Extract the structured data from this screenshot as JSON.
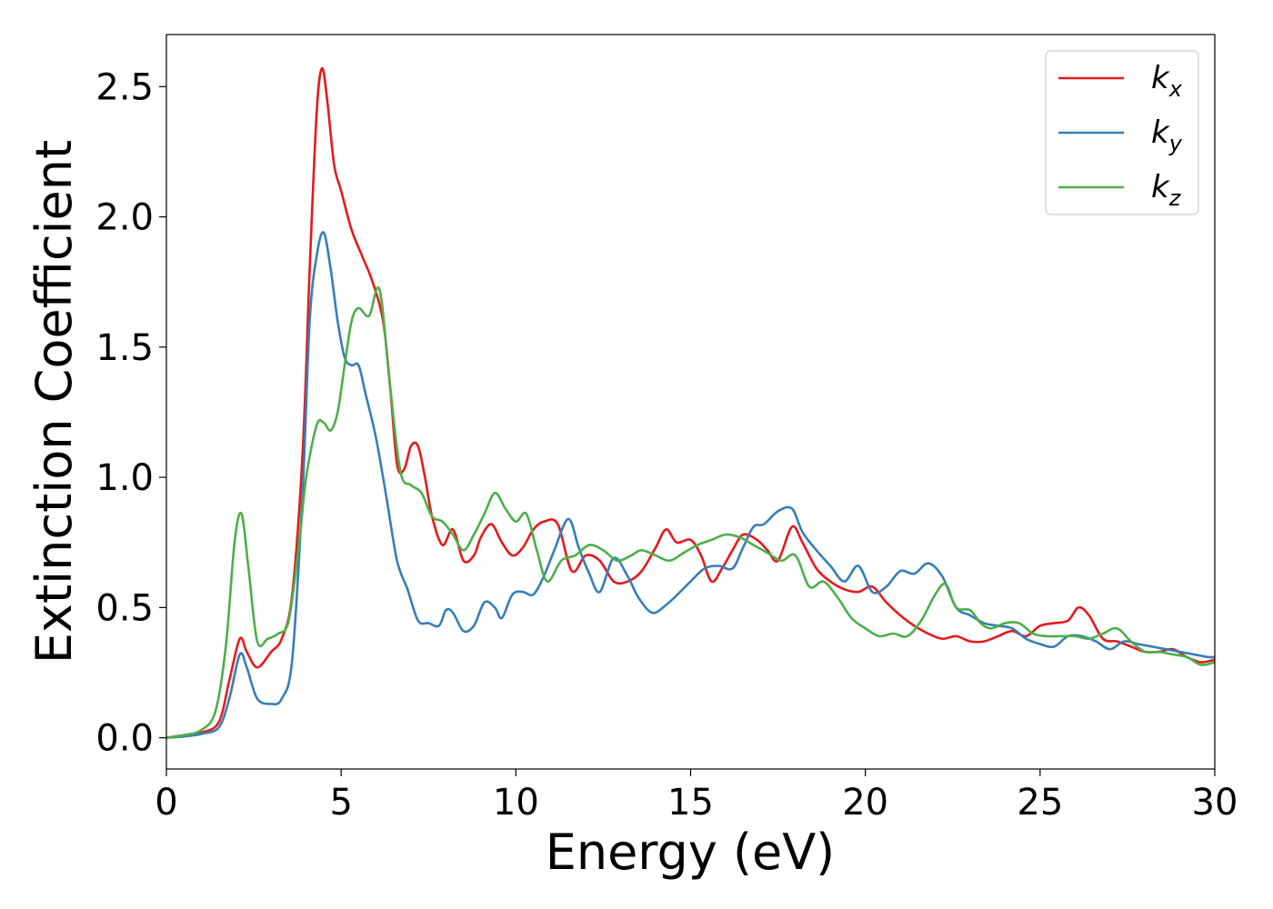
{
  "chart_data": {
    "type": "line",
    "xlabel": "Energy (eV)",
    "ylabel": "Extinction Coefficient",
    "xlim": [
      0,
      30
    ],
    "ylim": [
      -0.12,
      2.7
    ],
    "x_ticks": [
      0,
      5,
      10,
      15,
      20,
      25,
      30
    ],
    "x_tick_labels": [
      "0",
      "5",
      "10",
      "15",
      "20",
      "25",
      "30"
    ],
    "y_ticks": [
      0.0,
      0.5,
      1.0,
      1.5,
      2.0,
      2.5
    ],
    "y_tick_labels": [
      "0.0",
      "0.5",
      "1.0",
      "1.5",
      "2.0",
      "2.5"
    ],
    "grid": false,
    "legend_position": "top-right",
    "series": [
      {
        "name": "k_x",
        "label_main": "k",
        "label_sub": "x",
        "color": "#e41a1c",
        "points": [
          [
            0,
            0
          ],
          [
            0.5,
            0.01
          ],
          [
            1.0,
            0.02
          ],
          [
            1.5,
            0.06
          ],
          [
            1.8,
            0.22
          ],
          [
            2.1,
            0.38
          ],
          [
            2.3,
            0.33
          ],
          [
            2.6,
            0.27
          ],
          [
            3.0,
            0.33
          ],
          [
            3.3,
            0.38
          ],
          [
            3.6,
            0.55
          ],
          [
            3.9,
            1.1
          ],
          [
            4.1,
            1.8
          ],
          [
            4.3,
            2.4
          ],
          [
            4.45,
            2.57
          ],
          [
            4.6,
            2.45
          ],
          [
            4.8,
            2.2
          ],
          [
            5.0,
            2.1
          ],
          [
            5.3,
            1.95
          ],
          [
            5.6,
            1.85
          ],
          [
            5.9,
            1.75
          ],
          [
            6.2,
            1.6
          ],
          [
            6.4,
            1.35
          ],
          [
            6.6,
            1.05
          ],
          [
            6.8,
            1.03
          ],
          [
            7.0,
            1.12
          ],
          [
            7.2,
            1.12
          ],
          [
            7.4,
            1.0
          ],
          [
            7.6,
            0.85
          ],
          [
            7.9,
            0.74
          ],
          [
            8.2,
            0.8
          ],
          [
            8.5,
            0.68
          ],
          [
            8.8,
            0.7
          ],
          [
            9.0,
            0.77
          ],
          [
            9.3,
            0.82
          ],
          [
            9.6,
            0.75
          ],
          [
            9.9,
            0.7
          ],
          [
            10.2,
            0.73
          ],
          [
            10.5,
            0.8
          ],
          [
            10.8,
            0.83
          ],
          [
            11.2,
            0.82
          ],
          [
            11.6,
            0.64
          ],
          [
            12.0,
            0.7
          ],
          [
            12.4,
            0.68
          ],
          [
            12.8,
            0.6
          ],
          [
            13.2,
            0.6
          ],
          [
            13.6,
            0.64
          ],
          [
            14.0,
            0.73
          ],
          [
            14.3,
            0.8
          ],
          [
            14.6,
            0.75
          ],
          [
            15.0,
            0.76
          ],
          [
            15.3,
            0.7
          ],
          [
            15.6,
            0.6
          ],
          [
            15.9,
            0.65
          ],
          [
            16.2,
            0.72
          ],
          [
            16.5,
            0.78
          ],
          [
            16.9,
            0.76
          ],
          [
            17.2,
            0.72
          ],
          [
            17.5,
            0.68
          ],
          [
            17.9,
            0.81
          ],
          [
            18.2,
            0.75
          ],
          [
            18.6,
            0.65
          ],
          [
            19.0,
            0.6
          ],
          [
            19.4,
            0.57
          ],
          [
            19.8,
            0.56
          ],
          [
            20.2,
            0.58
          ],
          [
            20.6,
            0.52
          ],
          [
            21.0,
            0.47
          ],
          [
            21.4,
            0.43
          ],
          [
            21.8,
            0.4
          ],
          [
            22.2,
            0.38
          ],
          [
            22.6,
            0.39
          ],
          [
            23.0,
            0.37
          ],
          [
            23.4,
            0.37
          ],
          [
            23.8,
            0.39
          ],
          [
            24.2,
            0.41
          ],
          [
            24.6,
            0.39
          ],
          [
            25.0,
            0.43
          ],
          [
            25.4,
            0.44
          ],
          [
            25.8,
            0.45
          ],
          [
            26.1,
            0.5
          ],
          [
            26.4,
            0.47
          ],
          [
            26.8,
            0.38
          ],
          [
            27.2,
            0.37
          ],
          [
            27.6,
            0.35
          ],
          [
            28.0,
            0.33
          ],
          [
            28.4,
            0.33
          ],
          [
            28.8,
            0.34
          ],
          [
            29.2,
            0.31
          ],
          [
            29.6,
            0.29
          ],
          [
            30.0,
            0.3
          ]
        ]
      },
      {
        "name": "k_y",
        "label_main": "k",
        "label_sub": "y",
        "color": "#377eb8",
        "points": [
          [
            0,
            0
          ],
          [
            0.5,
            0.005
          ],
          [
            1.0,
            0.015
          ],
          [
            1.5,
            0.04
          ],
          [
            1.8,
            0.15
          ],
          [
            2.1,
            0.32
          ],
          [
            2.3,
            0.27
          ],
          [
            2.6,
            0.15
          ],
          [
            3.0,
            0.13
          ],
          [
            3.3,
            0.15
          ],
          [
            3.6,
            0.3
          ],
          [
            3.9,
            0.95
          ],
          [
            4.1,
            1.6
          ],
          [
            4.3,
            1.85
          ],
          [
            4.5,
            1.94
          ],
          [
            4.7,
            1.8
          ],
          [
            4.9,
            1.6
          ],
          [
            5.1,
            1.46
          ],
          [
            5.3,
            1.43
          ],
          [
            5.5,
            1.43
          ],
          [
            5.7,
            1.32
          ],
          [
            6.0,
            1.15
          ],
          [
            6.3,
            0.92
          ],
          [
            6.6,
            0.68
          ],
          [
            6.9,
            0.57
          ],
          [
            7.2,
            0.45
          ],
          [
            7.5,
            0.44
          ],
          [
            7.8,
            0.43
          ],
          [
            8.0,
            0.49
          ],
          [
            8.2,
            0.48
          ],
          [
            8.5,
            0.41
          ],
          [
            8.8,
            0.43
          ],
          [
            9.1,
            0.52
          ],
          [
            9.4,
            0.5
          ],
          [
            9.6,
            0.46
          ],
          [
            9.9,
            0.55
          ],
          [
            10.2,
            0.56
          ],
          [
            10.5,
            0.55
          ],
          [
            10.8,
            0.62
          ],
          [
            11.1,
            0.72
          ],
          [
            11.5,
            0.84
          ],
          [
            11.8,
            0.73
          ],
          [
            12.1,
            0.63
          ],
          [
            12.4,
            0.56
          ],
          [
            12.8,
            0.69
          ],
          [
            13.2,
            0.62
          ],
          [
            13.5,
            0.54
          ],
          [
            13.9,
            0.48
          ],
          [
            14.3,
            0.51
          ],
          [
            14.7,
            0.56
          ],
          [
            15.0,
            0.6
          ],
          [
            15.4,
            0.65
          ],
          [
            15.8,
            0.66
          ],
          [
            16.2,
            0.65
          ],
          [
            16.5,
            0.73
          ],
          [
            16.8,
            0.81
          ],
          [
            17.1,
            0.82
          ],
          [
            17.5,
            0.87
          ],
          [
            17.9,
            0.88
          ],
          [
            18.2,
            0.79
          ],
          [
            18.6,
            0.72
          ],
          [
            19.0,
            0.66
          ],
          [
            19.4,
            0.6
          ],
          [
            19.8,
            0.66
          ],
          [
            20.2,
            0.56
          ],
          [
            20.6,
            0.58
          ],
          [
            21.0,
            0.64
          ],
          [
            21.4,
            0.63
          ],
          [
            21.8,
            0.67
          ],
          [
            22.2,
            0.62
          ],
          [
            22.6,
            0.5
          ],
          [
            23.0,
            0.47
          ],
          [
            23.4,
            0.44
          ],
          [
            23.8,
            0.43
          ],
          [
            24.2,
            0.42
          ],
          [
            24.6,
            0.38
          ],
          [
            25.0,
            0.36
          ],
          [
            25.4,
            0.35
          ],
          [
            25.8,
            0.39
          ],
          [
            26.2,
            0.39
          ],
          [
            26.6,
            0.37
          ],
          [
            27.0,
            0.34
          ],
          [
            27.4,
            0.37
          ],
          [
            27.8,
            0.36
          ],
          [
            28.2,
            0.35
          ],
          [
            28.6,
            0.34
          ],
          [
            29.0,
            0.33
          ],
          [
            29.4,
            0.32
          ],
          [
            29.8,
            0.31
          ],
          [
            30.0,
            0.31
          ]
        ]
      },
      {
        "name": "k_z",
        "label_main": "k",
        "label_sub": "z",
        "color": "#4daf4a",
        "points": [
          [
            0,
            0
          ],
          [
            0.5,
            0.01
          ],
          [
            1.0,
            0.03
          ],
          [
            1.4,
            0.1
          ],
          [
            1.7,
            0.35
          ],
          [
            1.95,
            0.75
          ],
          [
            2.15,
            0.86
          ],
          [
            2.35,
            0.65
          ],
          [
            2.6,
            0.37
          ],
          [
            2.9,
            0.38
          ],
          [
            3.2,
            0.4
          ],
          [
            3.5,
            0.45
          ],
          [
            3.8,
            0.75
          ],
          [
            4.0,
            1.0
          ],
          [
            4.3,
            1.2
          ],
          [
            4.5,
            1.21
          ],
          [
            4.7,
            1.18
          ],
          [
            4.9,
            1.25
          ],
          [
            5.1,
            1.43
          ],
          [
            5.3,
            1.6
          ],
          [
            5.5,
            1.65
          ],
          [
            5.8,
            1.62
          ],
          [
            6.1,
            1.72
          ],
          [
            6.4,
            1.35
          ],
          [
            6.7,
            1.02
          ],
          [
            7.0,
            0.97
          ],
          [
            7.3,
            0.94
          ],
          [
            7.6,
            0.85
          ],
          [
            7.9,
            0.83
          ],
          [
            8.2,
            0.78
          ],
          [
            8.5,
            0.72
          ],
          [
            8.8,
            0.78
          ],
          [
            9.1,
            0.86
          ],
          [
            9.4,
            0.94
          ],
          [
            9.7,
            0.88
          ],
          [
            10.0,
            0.83
          ],
          [
            10.3,
            0.86
          ],
          [
            10.6,
            0.72
          ],
          [
            10.9,
            0.6
          ],
          [
            11.3,
            0.68
          ],
          [
            11.7,
            0.7
          ],
          [
            12.1,
            0.74
          ],
          [
            12.5,
            0.72
          ],
          [
            12.9,
            0.68
          ],
          [
            13.3,
            0.7
          ],
          [
            13.6,
            0.72
          ],
          [
            14.0,
            0.7
          ],
          [
            14.4,
            0.68
          ],
          [
            14.8,
            0.71
          ],
          [
            15.2,
            0.74
          ],
          [
            15.6,
            0.76
          ],
          [
            16.0,
            0.78
          ],
          [
            16.4,
            0.77
          ],
          [
            16.8,
            0.74
          ],
          [
            17.2,
            0.71
          ],
          [
            17.6,
            0.68
          ],
          [
            18.0,
            0.7
          ],
          [
            18.4,
            0.58
          ],
          [
            18.8,
            0.6
          ],
          [
            19.2,
            0.54
          ],
          [
            19.6,
            0.46
          ],
          [
            20.0,
            0.42
          ],
          [
            20.4,
            0.39
          ],
          [
            20.8,
            0.4
          ],
          [
            21.2,
            0.39
          ],
          [
            21.6,
            0.45
          ],
          [
            22.0,
            0.55
          ],
          [
            22.3,
            0.59
          ],
          [
            22.6,
            0.5
          ],
          [
            23.0,
            0.49
          ],
          [
            23.3,
            0.44
          ],
          [
            23.6,
            0.42
          ],
          [
            24.0,
            0.44
          ],
          [
            24.4,
            0.44
          ],
          [
            24.8,
            0.4
          ],
          [
            25.2,
            0.39
          ],
          [
            25.6,
            0.39
          ],
          [
            26.0,
            0.39
          ],
          [
            26.4,
            0.38
          ],
          [
            26.8,
            0.4
          ],
          [
            27.2,
            0.42
          ],
          [
            27.6,
            0.37
          ],
          [
            28.0,
            0.33
          ],
          [
            28.4,
            0.33
          ],
          [
            28.8,
            0.32
          ],
          [
            29.2,
            0.31
          ],
          [
            29.6,
            0.28
          ],
          [
            30.0,
            0.29
          ]
        ]
      }
    ]
  }
}
